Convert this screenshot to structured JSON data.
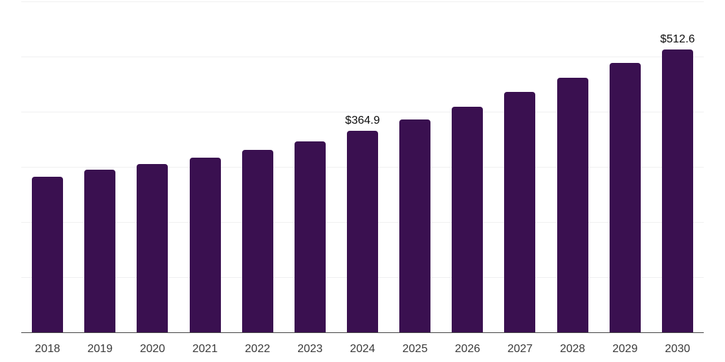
{
  "chart_data": {
    "type": "bar",
    "title": "",
    "xlabel": "",
    "ylabel": "",
    "categories": [
      "2018",
      "2019",
      "2020",
      "2021",
      "2022",
      "2023",
      "2024",
      "2025",
      "2026",
      "2027",
      "2028",
      "2029",
      "2030"
    ],
    "values": [
      282.5,
      294.6,
      305.7,
      317.3,
      331.4,
      346.1,
      364.9,
      386.0,
      409.6,
      435.4,
      462.0,
      488.2,
      512.6
    ],
    "data_labels": [
      "",
      "",
      "",
      "",
      "",
      "",
      "$364.9",
      "",
      "",
      "",
      "",
      "",
      "$512.6"
    ],
    "ylim": [
      0,
      600
    ],
    "gridline_step": 100,
    "grid": "horizontal",
    "legend": "none",
    "y_tick_labels_visible": false,
    "colors": {
      "bar": "#3a1050",
      "gridline": "#f0f0f1",
      "axis_line": "#474747",
      "x_label_text": "#3a3a3a",
      "data_label_text": "#0d0d0d",
      "background": "#ffffff"
    }
  }
}
